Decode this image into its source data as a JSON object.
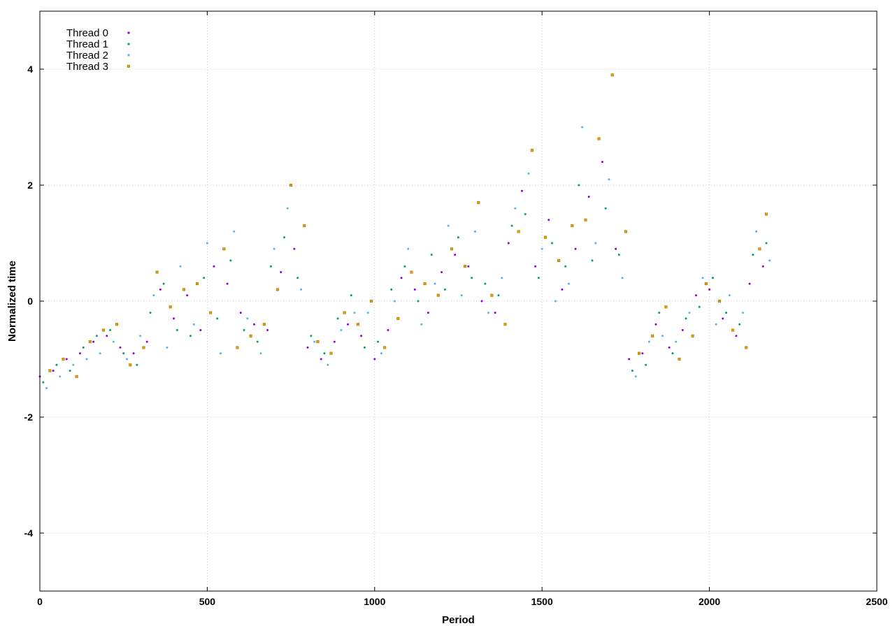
{
  "chart_data": {
    "type": "scatter",
    "title": "",
    "xlabel": "Period",
    "ylabel": "Normalized time",
    "xlim": [
      0,
      2500
    ],
    "ylim": [
      -5,
      5
    ],
    "x_ticks": [
      0,
      500,
      1000,
      1500,
      2000,
      2500
    ],
    "y_ticks": [
      -4,
      -2,
      0,
      2,
      4
    ],
    "grid": true,
    "legend_position": "top-left",
    "series": [
      {
        "name": "Thread 0",
        "color": "#9400d3",
        "marker": "dot",
        "x": [
          0,
          40,
          80,
          120,
          160,
          200,
          240,
          280,
          320,
          360,
          400,
          440,
          480,
          520,
          560,
          600,
          640,
          680,
          720,
          760,
          800,
          840,
          880,
          920,
          960,
          1000,
          1040,
          1080,
          1120,
          1160,
          1200,
          1240,
          1280,
          1320,
          1360,
          1400,
          1440,
          1480,
          1520,
          1560,
          1600,
          1640,
          1680,
          1720,
          1760,
          1800,
          1840,
          1880,
          1920,
          1960,
          2000,
          2040,
          2080,
          2120,
          2160
        ],
        "y": [
          -1.3,
          -1.2,
          -1.0,
          -0.9,
          -0.7,
          -0.6,
          -0.8,
          -0.9,
          -0.7,
          0.2,
          -0.3,
          0.1,
          -0.5,
          0.6,
          0.3,
          -0.2,
          -0.4,
          -0.5,
          0.5,
          0.9,
          -0.8,
          -1.0,
          -0.7,
          -0.4,
          -0.6,
          -1.0,
          -0.5,
          0.4,
          0.2,
          -0.2,
          0.5,
          0.8,
          0.6,
          0.0,
          -0.2,
          1.0,
          1.9,
          0.6,
          1.4,
          0.2,
          0.9,
          1.8,
          2.4,
          0.9,
          -1.0,
          -0.9,
          -0.4,
          -0.8,
          -0.5,
          0.1,
          0.2,
          -0.3,
          -0.6,
          0.3,
          0.6
        ]
      },
      {
        "name": "Thread 1",
        "color": "#009e73",
        "marker": "dot",
        "x": [
          10,
          50,
          90,
          130,
          170,
          210,
          250,
          290,
          330,
          370,
          410,
          450,
          490,
          530,
          570,
          610,
          650,
          690,
          730,
          770,
          810,
          850,
          890,
          930,
          970,
          1010,
          1050,
          1090,
          1130,
          1170,
          1210,
          1250,
          1290,
          1330,
          1370,
          1410,
          1450,
          1490,
          1530,
          1570,
          1610,
          1650,
          1690,
          1730,
          1770,
          1810,
          1850,
          1890,
          1930,
          1970,
          2010,
          2050,
          2090,
          2130,
          2170
        ],
        "y": [
          -1.4,
          -1.1,
          -1.2,
          -0.8,
          -0.6,
          -0.5,
          -0.9,
          -1.1,
          -0.2,
          0.3,
          -0.5,
          -0.6,
          0.4,
          -0.3,
          0.7,
          -0.5,
          -0.7,
          0.6,
          1.1,
          0.4,
          -0.6,
          -0.9,
          -0.3,
          0.1,
          -0.8,
          -0.7,
          0.2,
          0.6,
          0.0,
          0.8,
          0.2,
          1.1,
          0.4,
          0.3,
          0.1,
          1.3,
          1.5,
          0.4,
          1.0,
          0.6,
          2.0,
          0.7,
          1.6,
          0.8,
          -1.2,
          -1.1,
          -0.2,
          -0.9,
          -0.3,
          -0.1,
          0.4,
          -0.2,
          -0.4,
          0.8,
          1.0
        ]
      },
      {
        "name": "Thread 2",
        "color": "#56b4e9",
        "marker": "dot",
        "x": [
          20,
          60,
          100,
          140,
          180,
          220,
          260,
          300,
          340,
          380,
          420,
          460,
          500,
          540,
          580,
          620,
          660,
          700,
          740,
          780,
          820,
          860,
          900,
          940,
          980,
          1020,
          1060,
          1100,
          1140,
          1180,
          1220,
          1260,
          1300,
          1340,
          1380,
          1420,
          1460,
          1500,
          1540,
          1580,
          1620,
          1660,
          1700,
          1740,
          1780,
          1820,
          1860,
          1900,
          1940,
          1980,
          2020,
          2060,
          2100,
          2140,
          2180
        ],
        "y": [
          -1.5,
          -1.3,
          -1.1,
          -1.0,
          -0.9,
          -0.7,
          -1.0,
          -0.6,
          0.1,
          -0.8,
          0.6,
          -0.4,
          1.0,
          -0.9,
          1.2,
          -0.3,
          -0.9,
          0.9,
          1.6,
          0.2,
          -0.7,
          -1.1,
          -0.5,
          -0.2,
          -0.2,
          -0.9,
          0.0,
          0.9,
          -0.4,
          0.3,
          1.3,
          0.1,
          1.2,
          -0.2,
          0.4,
          1.6,
          2.2,
          0.9,
          0.0,
          0.3,
          3.0,
          1.0,
          2.1,
          0.4,
          -1.3,
          -0.7,
          -0.6,
          -0.7,
          -0.2,
          0.4,
          -0.4,
          0.1,
          -0.2,
          1.2,
          0.7
        ]
      },
      {
        "name": "Thread 3",
        "color": "#e69f00",
        "marker": "square",
        "x": [
          30,
          70,
          110,
          150,
          190,
          230,
          270,
          310,
          350,
          390,
          430,
          470,
          510,
          550,
          590,
          630,
          670,
          710,
          750,
          790,
          830,
          870,
          910,
          950,
          990,
          1030,
          1070,
          1110,
          1150,
          1190,
          1230,
          1270,
          1310,
          1350,
          1390,
          1430,
          1470,
          1510,
          1550,
          1590,
          1630,
          1670,
          1710,
          1750,
          1790,
          1830,
          1870,
          1910,
          1950,
          1990,
          2030,
          2070,
          2110,
          2150,
          2170
        ],
        "y": [
          -1.2,
          -1.0,
          -1.3,
          -0.7,
          -0.5,
          -0.4,
          -1.1,
          -0.8,
          0.5,
          -0.1,
          0.2,
          0.3,
          -0.2,
          0.9,
          -0.8,
          -0.6,
          -0.4,
          0.2,
          2.0,
          1.3,
          -0.7,
          -0.9,
          -0.2,
          -0.4,
          0.0,
          -0.8,
          -0.3,
          0.5,
          0.3,
          0.1,
          0.9,
          0.6,
          1.7,
          0.1,
          -0.4,
          1.2,
          2.6,
          1.1,
          0.7,
          1.3,
          1.4,
          2.8,
          3.9,
          1.2,
          -0.9,
          -0.6,
          -0.1,
          -1.0,
          -0.6,
          0.3,
          0.0,
          -0.5,
          -0.8,
          0.9,
          1.5
        ]
      }
    ]
  }
}
